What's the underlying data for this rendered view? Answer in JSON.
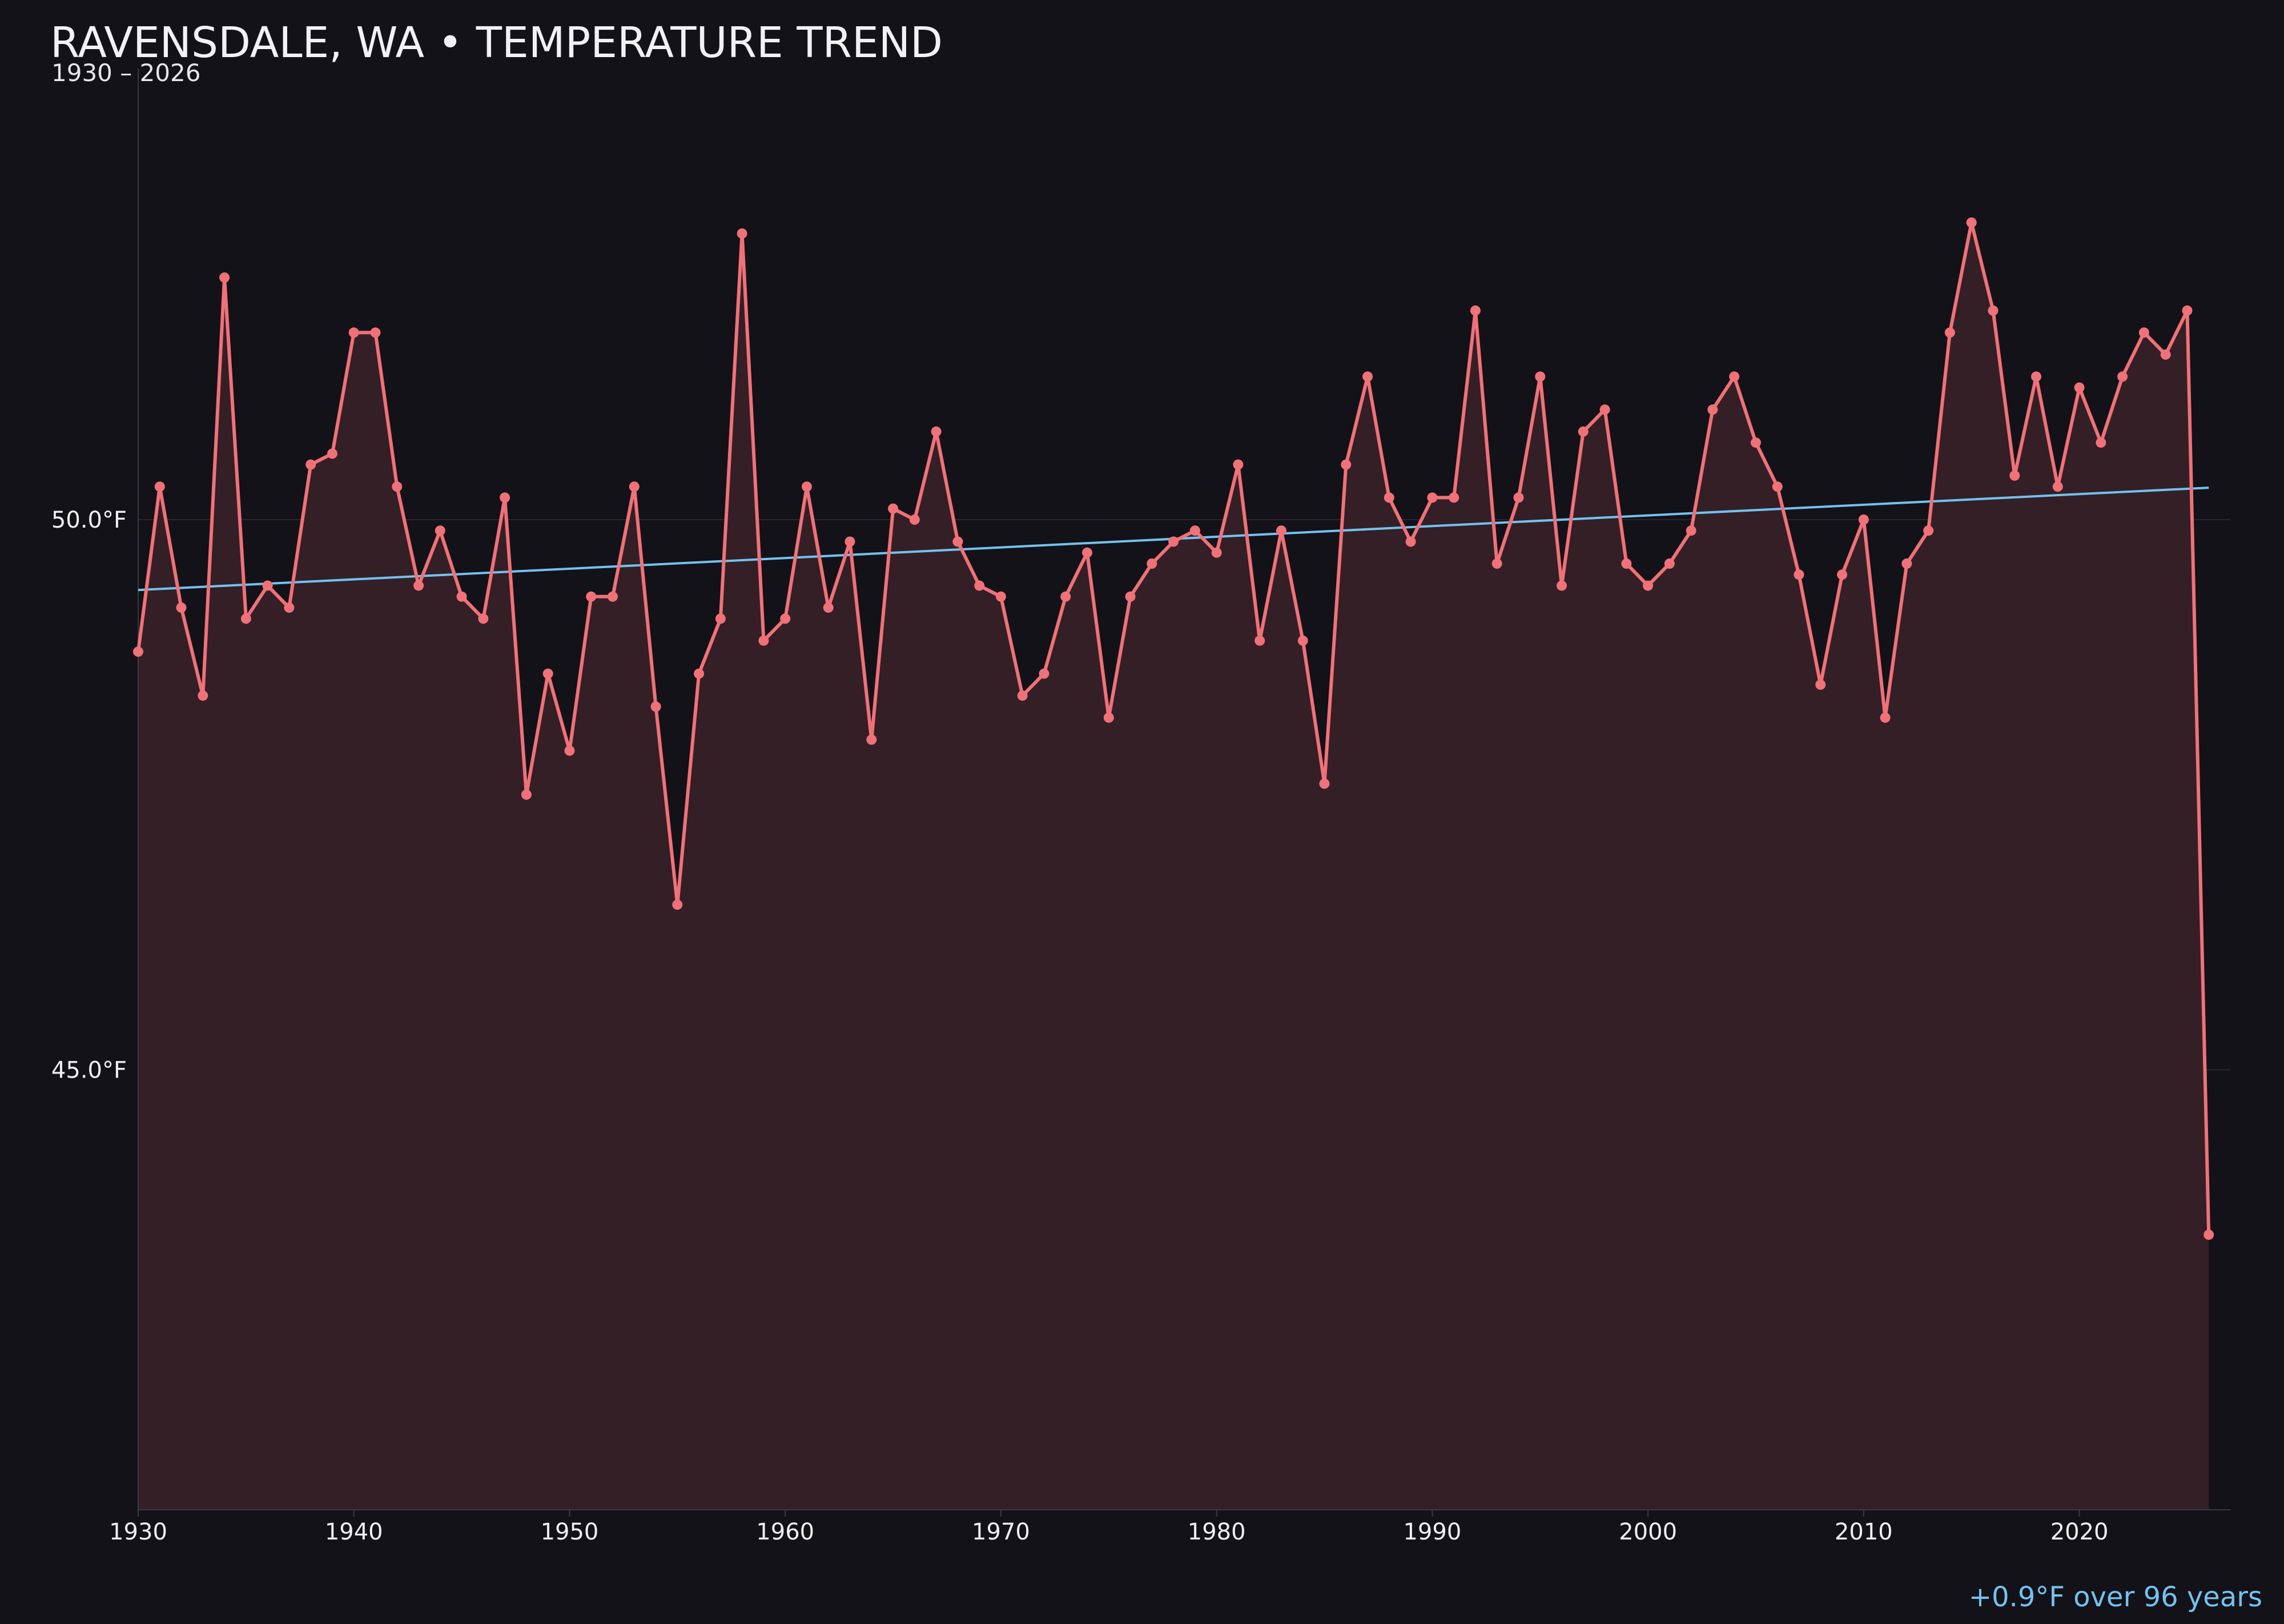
{
  "chart_data": {
    "type": "line",
    "title": "RAVENSDALE, WA • TEMPERATURE TREND",
    "subtitle": "1930 – 2026",
    "xlabel": "",
    "ylabel": "",
    "x_ticks": [
      "1930",
      "1940",
      "1950",
      "1960",
      "1970",
      "1980",
      "1990",
      "2000",
      "2010",
      "2020"
    ],
    "y_ticks": [
      {
        "value": 45.0,
        "label": "45.0°F"
      },
      {
        "value": 50.0,
        "label": "50.0°F"
      }
    ],
    "xlim": [
      1930,
      2027
    ],
    "ylim": [
      41.0,
      54.1
    ],
    "grid": "horizontal",
    "fill": "area",
    "series": [
      {
        "years": [
          1930,
          1931,
          1932,
          1933,
          1934,
          1935,
          1936,
          1937,
          1938,
          1939,
          1940,
          1941,
          1942,
          1943,
          1944,
          1945,
          1946,
          1947,
          1948,
          1949,
          1950,
          1951,
          1952,
          1953,
          1954,
          1955,
          1956,
          1957,
          1958,
          1959,
          1960,
          1961,
          1962,
          1963,
          1964,
          1965,
          1966,
          1967,
          1968,
          1969,
          1970,
          1971,
          1972,
          1973,
          1974,
          1975,
          1976,
          1977,
          1978,
          1979,
          1980,
          1981,
          1982,
          1983,
          1984,
          1985,
          1986,
          1987,
          1988,
          1989,
          1990,
          1991,
          1992,
          1993,
          1994,
          1995,
          1996,
          1997,
          1998,
          1999,
          2000,
          2001,
          2002,
          2003,
          2004,
          2005,
          2006,
          2007,
          2008,
          2009,
          2010,
          2011,
          2012,
          2013,
          2014,
          2015,
          2016,
          2017,
          2018,
          2019,
          2020,
          2021,
          2022,
          2023,
          2024,
          2025,
          2026
        ],
        "values": [
          48.8,
          50.3,
          49.2,
          48.4,
          52.2,
          49.1,
          49.4,
          49.2,
          50.5,
          50.6,
          51.7,
          51.7,
          50.3,
          49.4,
          49.9,
          49.3,
          49.1,
          50.2,
          47.5,
          48.6,
          47.9,
          49.3,
          49.3,
          50.3,
          48.3,
          46.5,
          48.6,
          49.1,
          52.6,
          48.9,
          49.1,
          50.3,
          49.2,
          49.8,
          48.0,
          50.1,
          50.0,
          50.8,
          49.8,
          49.4,
          49.3,
          48.4,
          48.6,
          49.3,
          49.7,
          48.2,
          49.3,
          49.6,
          49.8,
          49.9,
          49.7,
          50.5,
          48.9,
          49.9,
          48.9,
          47.6,
          50.5,
          51.3,
          50.2,
          49.8,
          50.2,
          50.2,
          51.9,
          49.6,
          50.2,
          51.3,
          49.4,
          50.8,
          51.0,
          49.6,
          49.4,
          49.6,
          49.9,
          51.0,
          51.3,
          50.7,
          50.3,
          49.5,
          48.5,
          49.5,
          50.0,
          48.2,
          49.6,
          49.9,
          51.7,
          52.7,
          51.9,
          50.4,
          51.3,
          50.3,
          51.2,
          50.7,
          51.3,
          51.7,
          51.5,
          51.9,
          43.5
        ]
      }
    ],
    "trend": {
      "start_year": 1930,
      "start_value": 49.36,
      "end_year": 2026,
      "end_value": 50.29
    },
    "annotation": "+0.9°F over 96 years",
    "colors": {
      "background": "#131218",
      "series": "#f07178",
      "area_fill": "#341f26",
      "trend": "#73c2f0",
      "grid": "#2a252c",
      "axis": "#3a3a42",
      "annotation": "#73c2f0"
    }
  }
}
